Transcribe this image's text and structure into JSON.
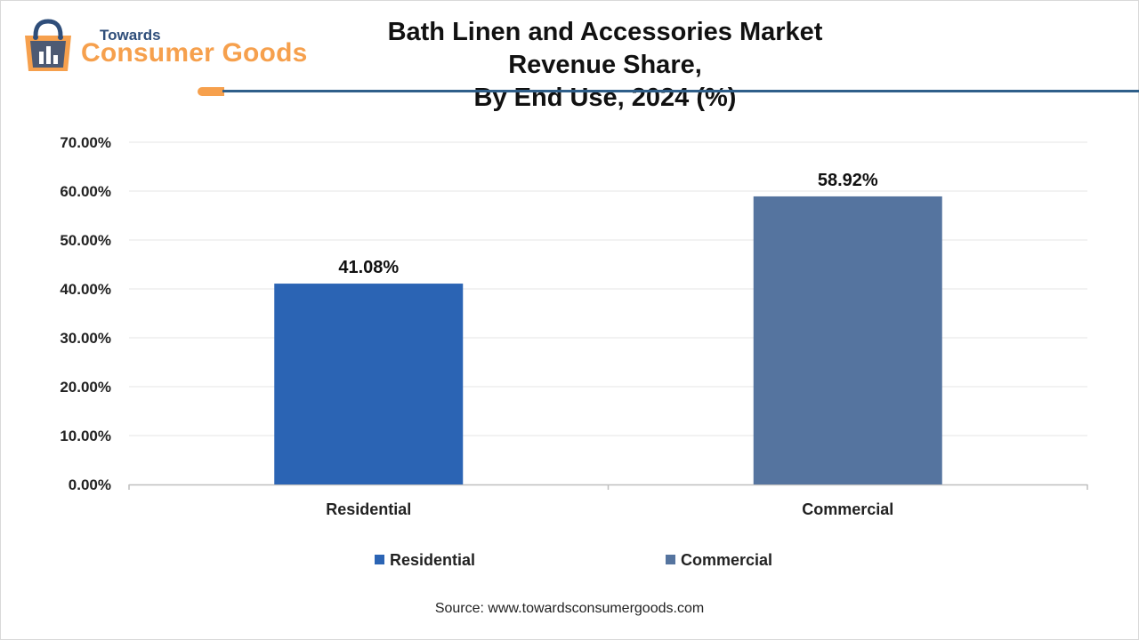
{
  "header": {
    "brand_small": "Towards",
    "brand_big": "Consumer Goods",
    "title_line1": "Bath Linen and Accessories Market Revenue Share,",
    "title_line2": "By End Use, 2024 (%)"
  },
  "source": "Source: www.towardsconsumergoods.com",
  "colors": {
    "residential": "#2b64b4",
    "commercial": "#55749f",
    "accent": "#f6a04d",
    "rule": "#2f5f8a"
  },
  "chart_data": {
    "type": "bar",
    "title": "Bath Linen and Accessories Market Revenue Share, By End Use, 2024 (%)",
    "categories": [
      "Residential",
      "Commercial"
    ],
    "values": [
      41.08,
      58.92
    ],
    "data_labels": [
      "41.08%",
      "58.92%"
    ],
    "ylim": [
      0,
      70
    ],
    "yticks": [
      "0.00%",
      "10.00%",
      "20.00%",
      "30.00%",
      "40.00%",
      "50.00%",
      "60.00%",
      "70.00%"
    ],
    "grid": true,
    "legend": {
      "position": "bottom",
      "entries": [
        "Residential",
        "Commercial"
      ]
    }
  }
}
